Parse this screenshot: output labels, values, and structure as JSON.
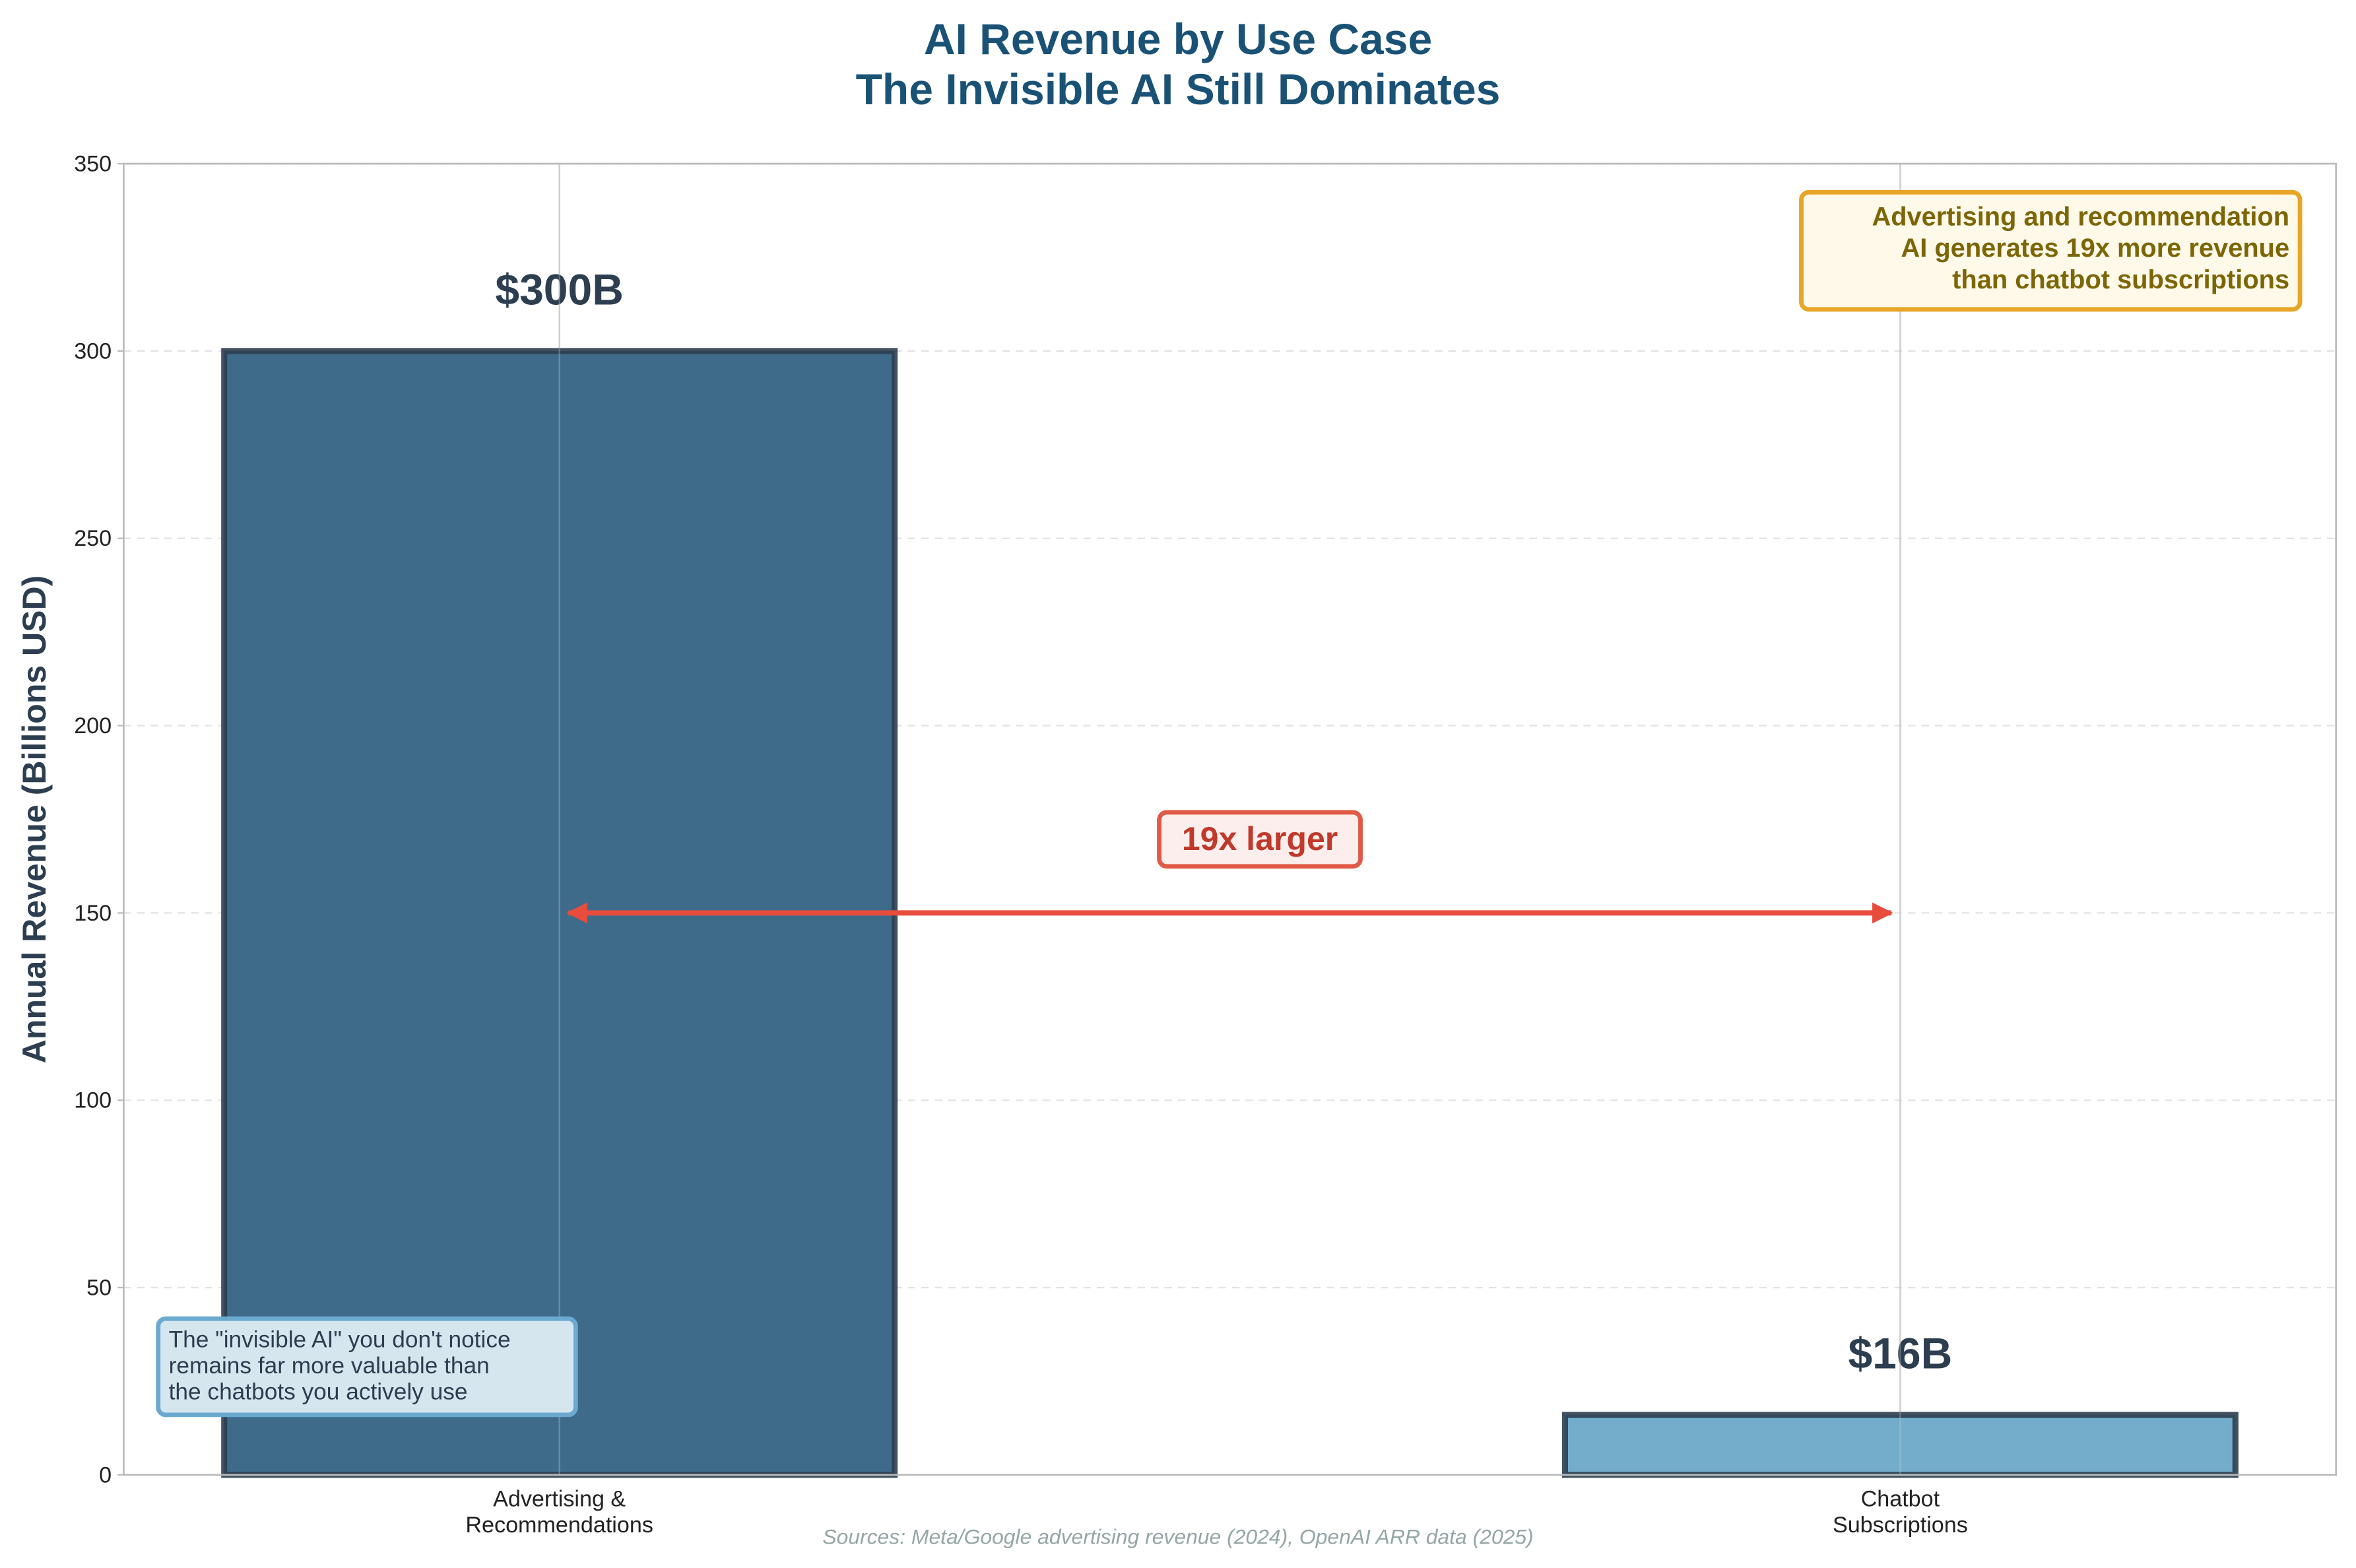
{
  "chart_data": {
    "type": "bar",
    "title": "AI Revenue by Use Case\nThe Invisible AI Still Dominates",
    "ylabel": "Annual Revenue (Billions USD)",
    "categories": [
      "Advertising &\nRecommendations",
      "Chatbot\nSubscriptions"
    ],
    "values": [
      300,
      16
    ],
    "value_labels": [
      "$300B",
      "$16B"
    ],
    "colors": [
      "#3e6b8a",
      "#74adcc"
    ],
    "ylim": [
      0,
      350
    ],
    "yticks": [
      0,
      50,
      100,
      150,
      200,
      250,
      300,
      350
    ],
    "grid": true,
    "annotations": {
      "ratio": "19x larger",
      "callout": "Advertising and recommendation\nAI generates 19x more revenue\nthan chatbot subscriptions",
      "note": "The \"invisible AI\" you don't notice\nremains far more valuable than\nthe chatbots you actively use",
      "source": "Sources: Meta/Google advertising revenue (2024), OpenAI ARR data (2025)"
    }
  }
}
